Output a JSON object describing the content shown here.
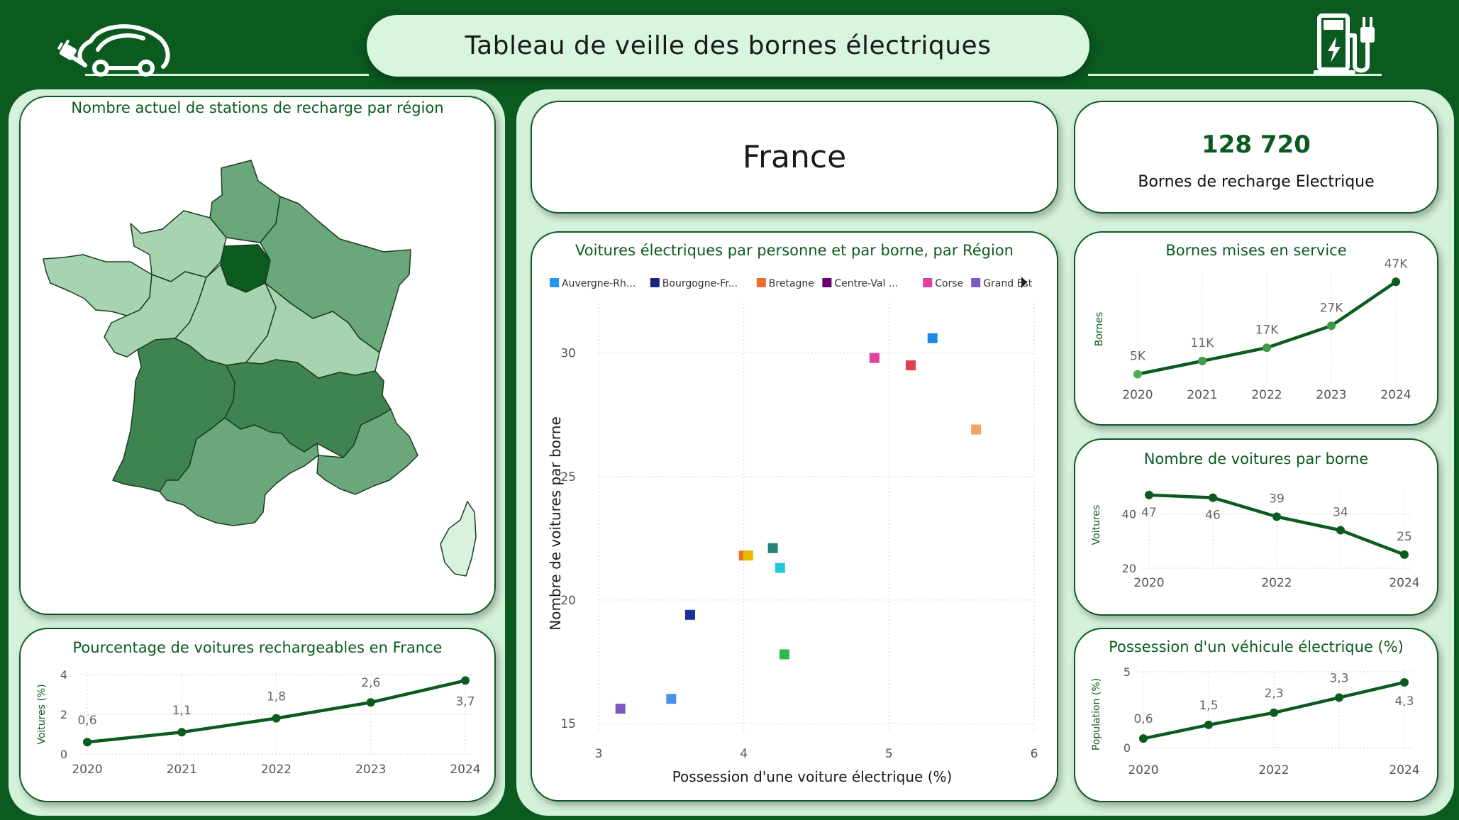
{
  "header": {
    "title": "Tableau de veille des bornes électriques"
  },
  "colors": {
    "background": "#0b5a1f",
    "panel": "#d4f1da",
    "pill": "#d8f6df",
    "line": "#0b5a1f",
    "point_light": "#4caf50"
  },
  "map_card": {
    "title": "Nombre actuel de stations de recharge par région",
    "regions": [
      {
        "name": "Hauts-de-France",
        "level": 2
      },
      {
        "name": "Normandie",
        "level": 1
      },
      {
        "name": "Île-de-France",
        "level": 4
      },
      {
        "name": "Grand Est",
        "level": 2
      },
      {
        "name": "Bretagne",
        "level": 1
      },
      {
        "name": "Pays de la Loire",
        "level": 1
      },
      {
        "name": "Centre-Val de Loire",
        "level": 1
      },
      {
        "name": "Bourgogne-Franche-Comté",
        "level": 1
      },
      {
        "name": "Nouvelle-Aquitaine",
        "level": 3
      },
      {
        "name": "Auvergne-Rhône-Alpes",
        "level": 3
      },
      {
        "name": "Occitanie",
        "level": 2
      },
      {
        "name": "Provence-Alpes-Côte d'Azur",
        "level": 2
      },
      {
        "name": "Corse",
        "level": 0
      }
    ]
  },
  "country_card": {
    "label": "France"
  },
  "kpi_card": {
    "value": "128 720",
    "label": "Bornes de recharge Electrique"
  },
  "chart_data": [
    {
      "id": "pct",
      "type": "line",
      "title": "Pourcentage de voitures rechargeables en France",
      "ylabel": "Voitures (%)",
      "x": [
        "2020",
        "2021",
        "2022",
        "2023",
        "2024"
      ],
      "values": [
        0.6,
        1.1,
        1.8,
        2.6,
        3.7
      ],
      "data_labels": [
        "0,6",
        "1,1",
        "1,8",
        "2,6",
        "3,7"
      ],
      "yticks": [
        "0",
        "2",
        "4"
      ],
      "ylim": [
        0,
        4
      ]
    },
    {
      "id": "scatter",
      "type": "scatter",
      "title": "Voitures électriques par personne et par borne, par Région",
      "xlabel": "Possession d'une voiture électrique (%)",
      "ylabel": "Nombre de voitures par borne",
      "xlim": [
        3,
        6
      ],
      "ylim": [
        15,
        32
      ],
      "xticks": [
        "3",
        "4",
        "5",
        "6"
      ],
      "yticks": [
        "15",
        "20",
        "25",
        "30"
      ],
      "legend": [
        {
          "name": "Auvergne-Rh...",
          "color": "#2196f3"
        },
        {
          "name": "Bourgogne-Fr...",
          "color": "#1a237e"
        },
        {
          "name": "Bretagne",
          "color": "#ef6c2b"
        },
        {
          "name": "Centre-Val ...",
          "color": "#6a006a"
        },
        {
          "name": "Corse",
          "color": "#e040a0"
        },
        {
          "name": "Grand Est",
          "color": "#7e57c2"
        }
      ],
      "points": [
        {
          "x": 5.3,
          "y": 30.6,
          "color": "#1e88e5"
        },
        {
          "x": 4.9,
          "y": 29.8,
          "color": "#e040a0"
        },
        {
          "x": 5.15,
          "y": 29.5,
          "color": "#e04050"
        },
        {
          "x": 5.6,
          "y": 26.9,
          "color": "#f4a261"
        },
        {
          "x": 4.2,
          "y": 22.1,
          "color": "#2a7f7a"
        },
        {
          "x": 4.0,
          "y": 21.8,
          "color": "#ef6c2b"
        },
        {
          "x": 4.03,
          "y": 21.8,
          "color": "#e8b800"
        },
        {
          "x": 4.25,
          "y": 21.3,
          "color": "#26c6da"
        },
        {
          "x": 3.63,
          "y": 19.4,
          "color": "#1a2f9a"
        },
        {
          "x": 4.28,
          "y": 17.8,
          "color": "#2eb84c"
        },
        {
          "x": 3.5,
          "y": 16.0,
          "color": "#4a8fe8"
        },
        {
          "x": 3.15,
          "y": 15.6,
          "color": "#7e57c2"
        }
      ]
    },
    {
      "id": "bornes",
      "type": "line",
      "title": "Bornes mises en service",
      "ylabel": "Bornes",
      "x": [
        "2020",
        "2021",
        "2022",
        "2023",
        "2024"
      ],
      "values": [
        5,
        11,
        17,
        27,
        47
      ],
      "data_labels": [
        "5K",
        "11K",
        "17K",
        "27K",
        "47K"
      ],
      "ylim": [
        0,
        50
      ]
    },
    {
      "id": "voitures",
      "type": "line",
      "title": "Nombre de voitures par borne",
      "ylabel": "Voitures",
      "x": [
        2020,
        2021,
        2022,
        2023,
        2024
      ],
      "xticks": [
        "2020",
        "2022",
        "2024"
      ],
      "values": [
        47,
        46,
        39,
        34,
        25
      ],
      "data_labels": [
        "47",
        "46",
        "39",
        "34",
        "25"
      ],
      "yticks": [
        "20",
        "40"
      ],
      "ylim": [
        20,
        48
      ]
    },
    {
      "id": "possession",
      "type": "line",
      "title": "Possession d'un véhicule électrique (%)",
      "ylabel": "Population (%)",
      "x": [
        2020,
        2021,
        2022,
        2023,
        2024
      ],
      "xticks": [
        "2020",
        "2022",
        "2024"
      ],
      "values": [
        0.6,
        1.5,
        2.3,
        3.3,
        4.3
      ],
      "data_labels": [
        "0,6",
        "1,5",
        "2,3",
        "3,3",
        "4,3"
      ],
      "yticks": [
        "0",
        "5"
      ],
      "ylim": [
        0,
        5
      ]
    }
  ]
}
